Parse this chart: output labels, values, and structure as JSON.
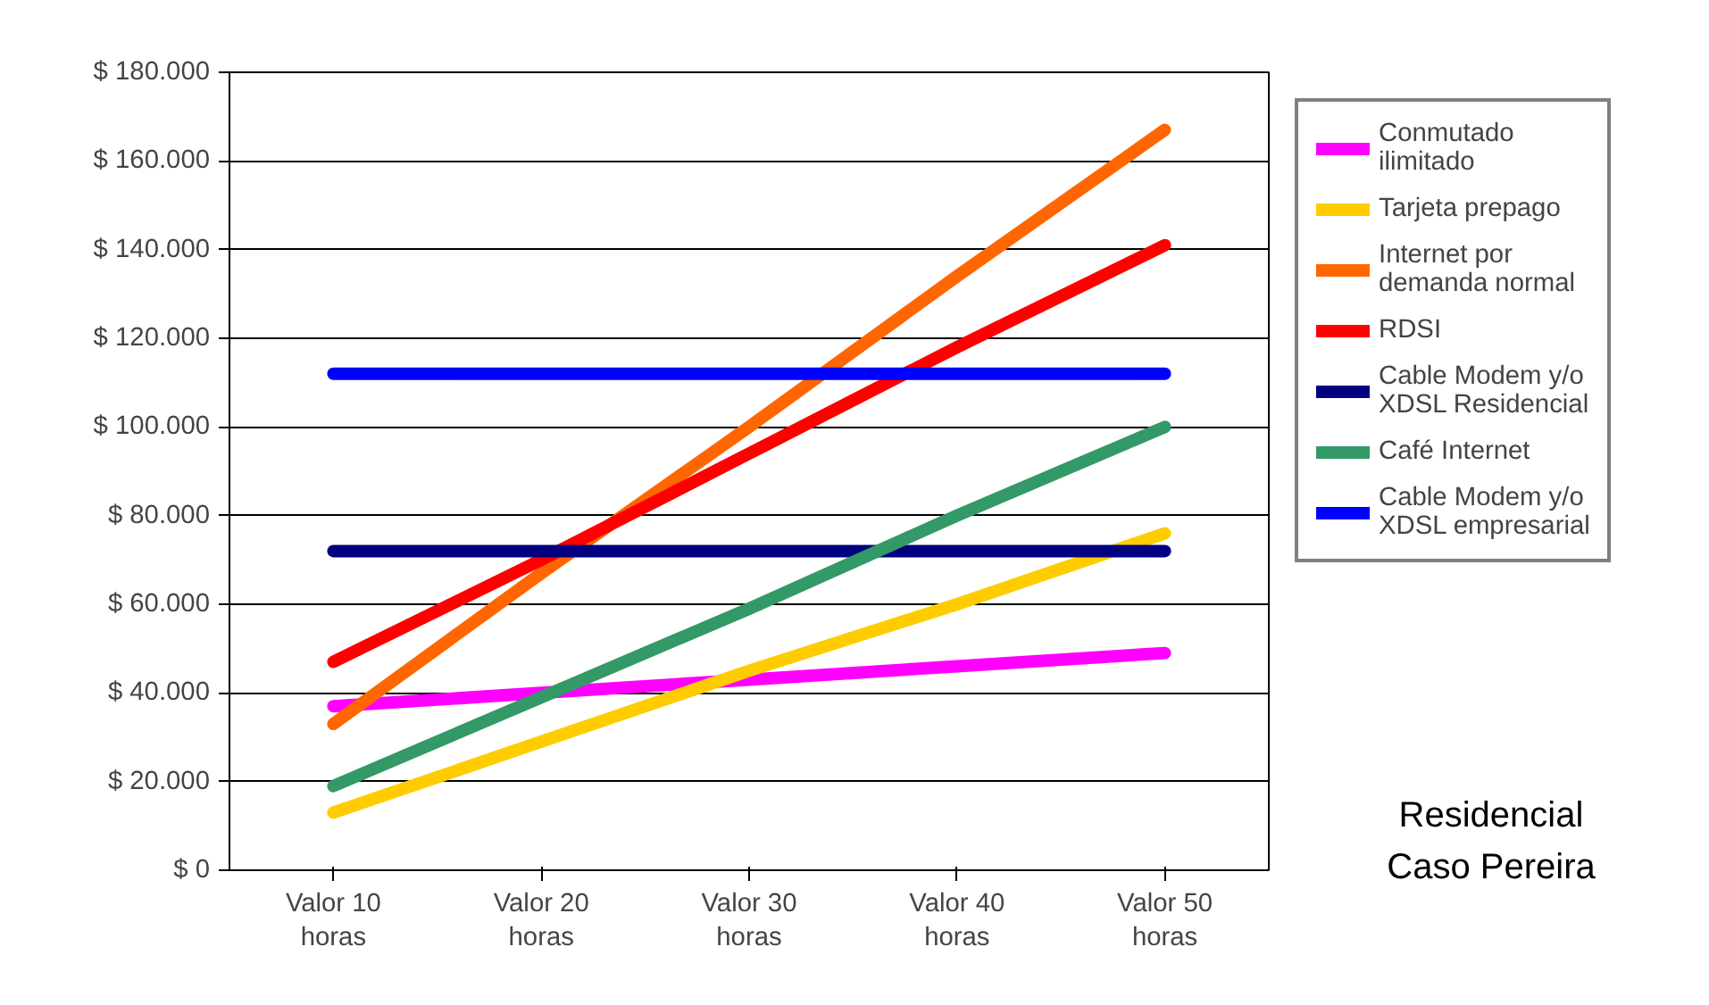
{
  "chart_data": {
    "type": "line",
    "categories": [
      "Valor 10 horas",
      "Valor 20 horas",
      "Valor 30 horas",
      "Valor 40 horas",
      "Valor 50 horas"
    ],
    "ylim": [
      0,
      180000
    ],
    "yticks": [
      {
        "value": 0,
        "label": "$ 0"
      },
      {
        "value": 20000,
        "label": "$ 20.000"
      },
      {
        "value": 40000,
        "label": "$ 40.000"
      },
      {
        "value": 60000,
        "label": "$ 60.000"
      },
      {
        "value": 80000,
        "label": "$ 80.000"
      },
      {
        "value": 100000,
        "label": "$ 100.000"
      },
      {
        "value": 120000,
        "label": "$ 120.000"
      },
      {
        "value": 140000,
        "label": "$ 140.000"
      },
      {
        "value": 160000,
        "label": "$ 160.000"
      },
      {
        "value": 180000,
        "label": "$ 180.000"
      }
    ],
    "grid": "y",
    "legend": "right",
    "marker": "none",
    "line_style": "solid",
    "series": [
      {
        "name": "Conmutado ilimitado",
        "color": "#ff00ff",
        "values": [
          37000,
          40000,
          43000,
          46000,
          49000
        ]
      },
      {
        "name": "Tarjeta prepago",
        "color": "#ffcc00",
        "values": [
          13000,
          29000,
          45000,
          60000,
          76000
        ]
      },
      {
        "name": "Internet por demanda normal",
        "color": "#ff6600",
        "values": [
          33000,
          67000,
          100000,
          134000,
          167000
        ]
      },
      {
        "name": "RDSI",
        "color": "#ff0000",
        "values": [
          47000,
          70000,
          94000,
          118000,
          141000
        ]
      },
      {
        "name": "Cable Modem y/o XDSL Residencial",
        "color": "#000080",
        "values": [
          72000,
          72000,
          72000,
          72000,
          72000
        ]
      },
      {
        "name": "Café Internet",
        "color": "#339966",
        "values": [
          19000,
          39000,
          59000,
          80000,
          100000
        ]
      },
      {
        "name": "Cable Modem y/o XDSL empresarial",
        "color": "#0000ff",
        "values": [
          112000,
          112000,
          112000,
          112000,
          112000
        ]
      }
    ],
    "annotations": [
      "Residencial Caso Pereira"
    ]
  }
}
